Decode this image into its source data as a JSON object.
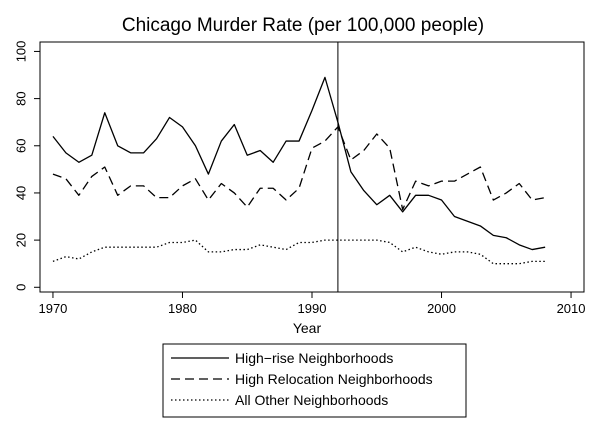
{
  "chart_data": {
    "type": "line",
    "title": "Chicago Murder Rate (per 100,000 people)",
    "xlabel": "Year",
    "ylabel": "",
    "xlim": [
      1969,
      2011
    ],
    "ylim": [
      -2,
      104
    ],
    "x_ticks": [
      1970,
      1980,
      1990,
      2000,
      2010
    ],
    "y_ticks": [
      0,
      20,
      40,
      60,
      80,
      100
    ],
    "grid": false,
    "legend_position": "bottom-center",
    "reference_line_x": 1992,
    "x": [
      1970,
      1971,
      1972,
      1973,
      1974,
      1975,
      1976,
      1977,
      1978,
      1979,
      1980,
      1981,
      1982,
      1983,
      1984,
      1985,
      1986,
      1987,
      1988,
      1989,
      1990,
      1991,
      1992,
      1993,
      1994,
      1995,
      1996,
      1997,
      1998,
      1999,
      2000,
      2001,
      2002,
      2003,
      2004,
      2005,
      2006,
      2007,
      2008
    ],
    "series": [
      {
        "name": "High−rise Neighborhoods",
        "style": "solid",
        "values": [
          64,
          57,
          53,
          56,
          74,
          60,
          57,
          57,
          63,
          72,
          68,
          60,
          48,
          62,
          69,
          56,
          58,
          53,
          62,
          62,
          75,
          89,
          70,
          49,
          41,
          35,
          39,
          32,
          39,
          39,
          37,
          30,
          28,
          26,
          22,
          21,
          18,
          16,
          17
        ]
      },
      {
        "name": "High Relocation Neighborhoods",
        "style": "dashed",
        "values": [
          48,
          46,
          39,
          47,
          51,
          39,
          43,
          43,
          38,
          38,
          43,
          46,
          37,
          44,
          40,
          34,
          42,
          42,
          37,
          42,
          59,
          62,
          68,
          54,
          58,
          65,
          59,
          33,
          45,
          43,
          45,
          45,
          48,
          51,
          37,
          40,
          44,
          37,
          38
        ]
      },
      {
        "name": "All Other Neighborhoods",
        "style": "dotted",
        "values": [
          11,
          13,
          12,
          15,
          17,
          17,
          17,
          17,
          17,
          19,
          19,
          20,
          15,
          15,
          16,
          16,
          18,
          17,
          16,
          19,
          19,
          20,
          20,
          20,
          20,
          20,
          19,
          15,
          17,
          15,
          14,
          15,
          15,
          14,
          10,
          10,
          10,
          11,
          11
        ]
      }
    ]
  }
}
